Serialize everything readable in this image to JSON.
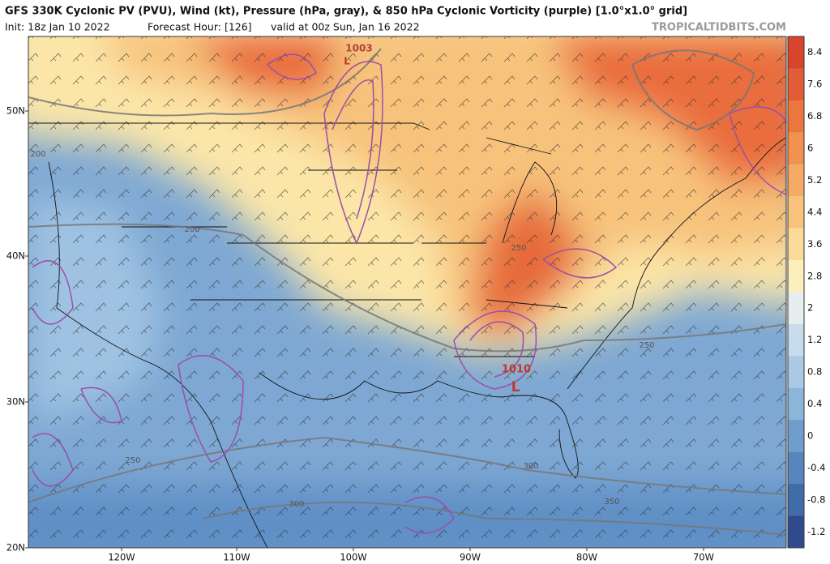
{
  "header": {
    "title": "GFS 330K Cyclonic PV (PVU), Wind (kt), Pressure (hPa, gray), & 850 hPa Cyclonic Vorticity (purple) [1.0°x1.0° grid]",
    "init": "Init: 18z Jan 10 2022",
    "forecast_hour": "Forecast Hour: [126]",
    "valid": "valid at 00z Sun, Jan 16 2022",
    "watermark": "TROPICALTIDBITS.COM"
  },
  "colorbar": [
    {
      "label": "8.4",
      "color": "#d8452d"
    },
    {
      "label": "7.6",
      "color": "#e25c35"
    },
    {
      "label": "6.8",
      "color": "#eb773f"
    },
    {
      "label": "6",
      "color": "#f1924e"
    },
    {
      "label": "5.2",
      "color": "#f5ab63"
    },
    {
      "label": "4.4",
      "color": "#f8c47b"
    },
    {
      "label": "3.6",
      "color": "#fadb98"
    },
    {
      "label": "2.8",
      "color": "#fcefbc"
    },
    {
      "label": "2",
      "color": "#e6eef0"
    },
    {
      "label": "1.2",
      "color": "#c7dcec"
    },
    {
      "label": "0.8",
      "color": "#a9c9e4"
    },
    {
      "label": "0.4",
      "color": "#8cb5da"
    },
    {
      "label": "0",
      "color": "#6f9ecd"
    },
    {
      "label": "-0.4",
      "color": "#5786be"
    },
    {
      "label": "-0.8",
      "color": "#416caa"
    },
    {
      "label": "-1.2",
      "color": "#2f4b8d"
    }
  ],
  "lat_labels": [
    "50N",
    "40N",
    "30N",
    "20N"
  ],
  "lon_labels": [
    "120W",
    "110W",
    "100W",
    "90W",
    "80W",
    "70W"
  ],
  "contour_labels": [
    "1003",
    "L",
    "1010",
    "L",
    "200",
    "200",
    "250",
    "250",
    "250",
    "300",
    "300",
    "350"
  ]
}
